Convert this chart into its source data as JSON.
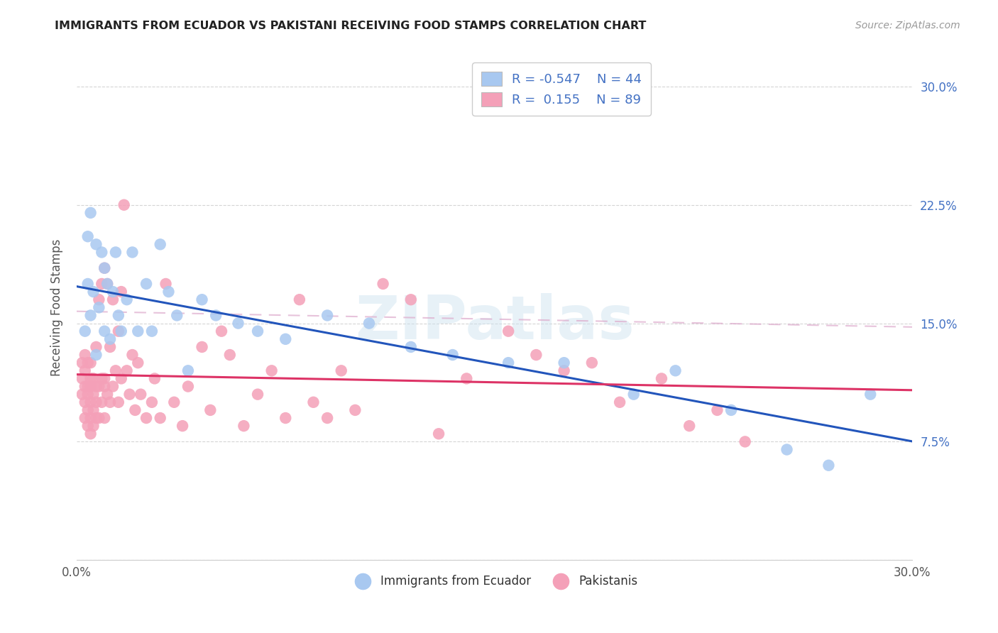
{
  "title": "IMMIGRANTS FROM ECUADOR VS PAKISTANI RECEIVING FOOD STAMPS CORRELATION CHART",
  "source": "Source: ZipAtlas.com",
  "ylabel": "Receiving Food Stamps",
  "xlim": [
    0.0,
    0.3
  ],
  "ylim": [
    0.0,
    0.32
  ],
  "watermark": "ZIPatlas",
  "legend_r_ecuador": "-0.547",
  "legend_n_ecuador": "44",
  "legend_r_pakistani": " 0.155",
  "legend_n_pakistani": "89",
  "ecuador_color": "#a8c8f0",
  "pakistani_color": "#f4a0b8",
  "ecuador_line_color": "#2255bb",
  "pakistani_line_color": "#dd3366",
  "pakistani_dash_color": "#ddaacc",
  "ecuador_scatter_x": [
    0.003,
    0.004,
    0.004,
    0.005,
    0.005,
    0.006,
    0.007,
    0.007,
    0.008,
    0.009,
    0.01,
    0.01,
    0.011,
    0.012,
    0.013,
    0.014,
    0.015,
    0.016,
    0.018,
    0.02,
    0.022,
    0.025,
    0.027,
    0.03,
    0.033,
    0.036,
    0.04,
    0.045,
    0.05,
    0.058,
    0.065,
    0.075,
    0.09,
    0.105,
    0.12,
    0.135,
    0.155,
    0.175,
    0.2,
    0.215,
    0.235,
    0.255,
    0.27,
    0.285
  ],
  "ecuador_scatter_y": [
    0.145,
    0.175,
    0.205,
    0.155,
    0.22,
    0.17,
    0.13,
    0.2,
    0.16,
    0.195,
    0.145,
    0.185,
    0.175,
    0.14,
    0.17,
    0.195,
    0.155,
    0.145,
    0.165,
    0.195,
    0.145,
    0.175,
    0.145,
    0.2,
    0.17,
    0.155,
    0.12,
    0.165,
    0.155,
    0.15,
    0.145,
    0.14,
    0.155,
    0.15,
    0.135,
    0.13,
    0.125,
    0.125,
    0.105,
    0.12,
    0.095,
    0.07,
    0.06,
    0.105
  ],
  "pakistani_scatter_x": [
    0.002,
    0.002,
    0.002,
    0.003,
    0.003,
    0.003,
    0.003,
    0.003,
    0.004,
    0.004,
    0.004,
    0.004,
    0.004,
    0.005,
    0.005,
    0.005,
    0.005,
    0.005,
    0.005,
    0.006,
    0.006,
    0.006,
    0.006,
    0.007,
    0.007,
    0.007,
    0.007,
    0.008,
    0.008,
    0.008,
    0.009,
    0.009,
    0.009,
    0.01,
    0.01,
    0.01,
    0.01,
    0.011,
    0.011,
    0.012,
    0.012,
    0.013,
    0.013,
    0.014,
    0.015,
    0.015,
    0.016,
    0.016,
    0.017,
    0.018,
    0.019,
    0.02,
    0.021,
    0.022,
    0.023,
    0.025,
    0.027,
    0.028,
    0.03,
    0.032,
    0.035,
    0.038,
    0.04,
    0.045,
    0.048,
    0.052,
    0.055,
    0.06,
    0.065,
    0.07,
    0.075,
    0.08,
    0.085,
    0.09,
    0.095,
    0.1,
    0.11,
    0.12,
    0.13,
    0.14,
    0.155,
    0.165,
    0.175,
    0.185,
    0.195,
    0.21,
    0.22,
    0.23,
    0.24
  ],
  "pakistani_scatter_y": [
    0.105,
    0.115,
    0.125,
    0.09,
    0.1,
    0.11,
    0.12,
    0.13,
    0.085,
    0.095,
    0.105,
    0.11,
    0.125,
    0.08,
    0.09,
    0.1,
    0.11,
    0.115,
    0.125,
    0.085,
    0.095,
    0.105,
    0.115,
    0.09,
    0.1,
    0.11,
    0.135,
    0.09,
    0.11,
    0.165,
    0.1,
    0.115,
    0.175,
    0.09,
    0.11,
    0.115,
    0.185,
    0.105,
    0.175,
    0.1,
    0.135,
    0.11,
    0.165,
    0.12,
    0.1,
    0.145,
    0.115,
    0.17,
    0.225,
    0.12,
    0.105,
    0.13,
    0.095,
    0.125,
    0.105,
    0.09,
    0.1,
    0.115,
    0.09,
    0.175,
    0.1,
    0.085,
    0.11,
    0.135,
    0.095,
    0.145,
    0.13,
    0.085,
    0.105,
    0.12,
    0.09,
    0.165,
    0.1,
    0.09,
    0.12,
    0.095,
    0.175,
    0.165,
    0.08,
    0.115,
    0.145,
    0.13,
    0.12,
    0.125,
    0.1,
    0.115,
    0.085,
    0.095,
    0.075
  ]
}
